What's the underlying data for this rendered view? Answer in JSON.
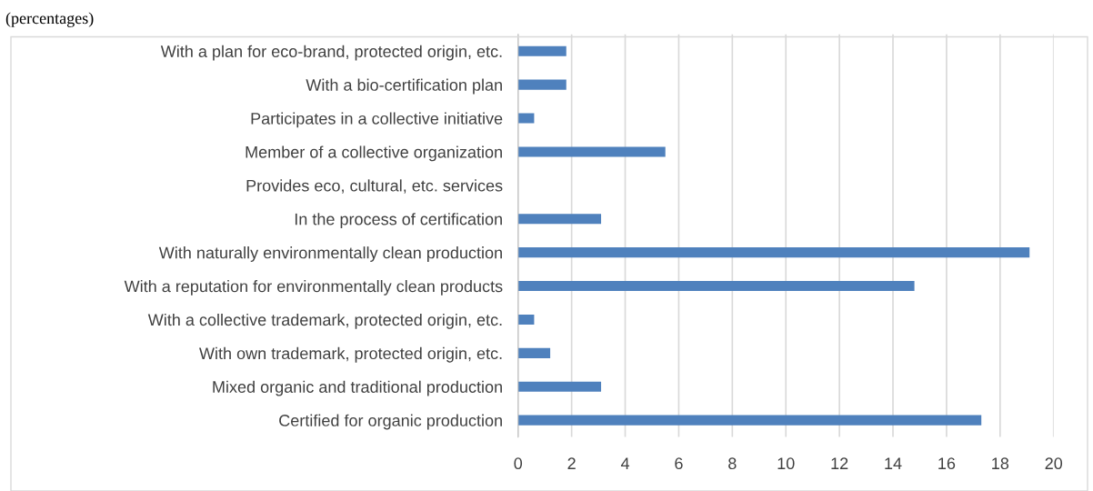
{
  "chart_data": {
    "type": "bar",
    "orientation": "horizontal",
    "title": "(percentages)",
    "categories": [
      "With a plan for eco-brand, protected origin, etc.",
      "With a bio-certification plan",
      "Participates in a collective initiative",
      "Member of a collective organization",
      "Provides eco, cultural, etc. services",
      "In the process of certification",
      "With naturally environmentally clean production",
      "With a reputation for environmentally clean products",
      "With a collective trademark, protected origin, etc.",
      "With own trademark, protected origin, etc.",
      "Mixed organic and traditional production",
      "Certified for organic production"
    ],
    "values": [
      1.8,
      1.8,
      0.6,
      5.5,
      0,
      3.1,
      19.1,
      14.8,
      0.6,
      1.2,
      3.1,
      17.3
    ],
    "color": "#4f81bd",
    "xlim": [
      0,
      20
    ],
    "xticks": [
      0,
      2,
      4,
      6,
      8,
      10,
      12,
      14,
      16,
      18,
      20
    ],
    "grid": "x"
  }
}
